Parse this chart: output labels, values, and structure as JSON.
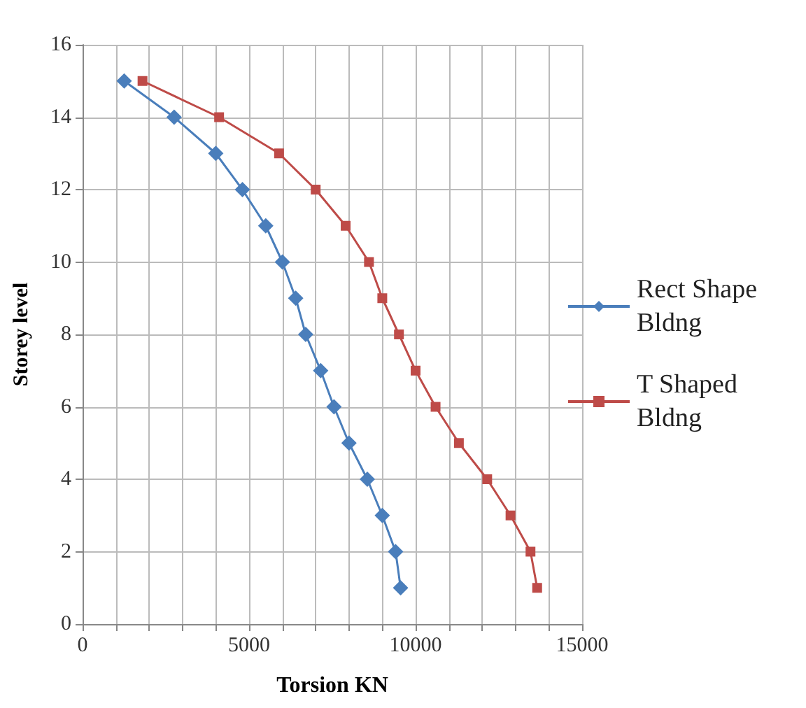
{
  "chart_data": {
    "type": "line",
    "xlabel": "Torsion KN",
    "ylabel": "Storey level",
    "xlim": [
      0,
      15000
    ],
    "xticks": [
      0,
      {
        "value": 1000,
        "label": null
      },
      {
        "value": 2000,
        "label": null
      },
      {
        "value": 3000,
        "label": null
      },
      {
        "value": 4000,
        "label": null
      },
      5000,
      {
        "value": 6000,
        "label": null
      },
      {
        "value": 7000,
        "label": null
      },
      {
        "value": 8000,
        "label": null
      },
      {
        "value": 9000,
        "label": null
      },
      10000,
      {
        "value": 11000,
        "label": null
      },
      {
        "value": 12000,
        "label": null
      },
      {
        "value": 13000,
        "label": null
      },
      {
        "value": 14000,
        "label": null
      },
      15000
    ],
    "ylim": [
      0,
      16
    ],
    "yticks": [
      0,
      2,
      4,
      6,
      8,
      10,
      12,
      14,
      16
    ],
    "grid": true,
    "legend": "right",
    "series": [
      {
        "name": "Rect Shape Bldng",
        "color": "#4a7ebb",
        "marker": "diamond",
        "x": [
          1250,
          2750,
          4000,
          4800,
          5500,
          6000,
          6400,
          6700,
          7150,
          7550,
          8000,
          8550,
          9000,
          9400,
          9550
        ],
        "values": [
          15,
          14,
          13,
          12,
          11,
          10,
          9,
          8,
          7,
          6,
          5,
          4,
          3,
          2,
          1
        ]
      },
      {
        "name": "T Shaped Bldng",
        "color": "#be4b48",
        "marker": "square",
        "x": [
          1800,
          4100,
          5900,
          7000,
          7900,
          8600,
          9000,
          9500,
          10000,
          10600,
          11300,
          12150,
          12850,
          13450,
          13650
        ],
        "values": [
          15,
          14,
          13,
          12,
          11,
          10,
          9,
          8,
          7,
          6,
          5,
          4,
          3,
          2,
          1
        ]
      }
    ]
  }
}
